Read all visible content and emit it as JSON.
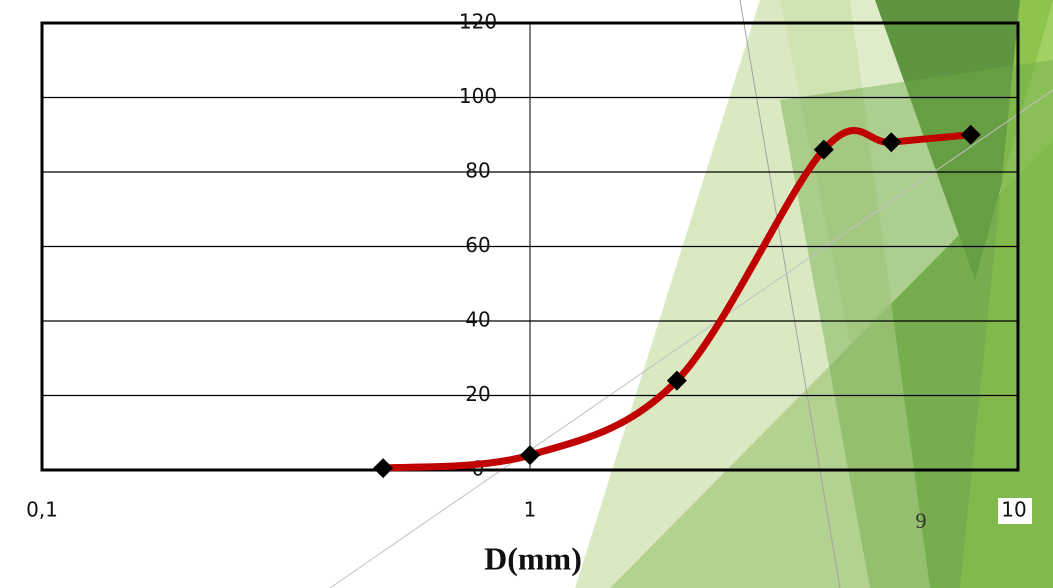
{
  "chart_data": {
    "type": "line",
    "x_label": "D(mm)",
    "xscale": "log",
    "x": [
      0.5,
      1,
      2,
      4,
      5.5,
      8
    ],
    "series": [
      {
        "color": "#c00000",
        "marker_color": "#000000",
        "values": [
          0.5,
          4,
          24,
          86,
          88,
          90
        ]
      }
    ],
    "xlim": [
      0.1,
      10
    ],
    "xticks": [
      {
        "value": 0.1,
        "label": "0,1"
      },
      1,
      10
    ],
    "ylim": [
      0,
      120
    ],
    "yticks": [
      0,
      20,
      40,
      60,
      80,
      100,
      120
    ],
    "grid": true
  },
  "slide_number": "9"
}
